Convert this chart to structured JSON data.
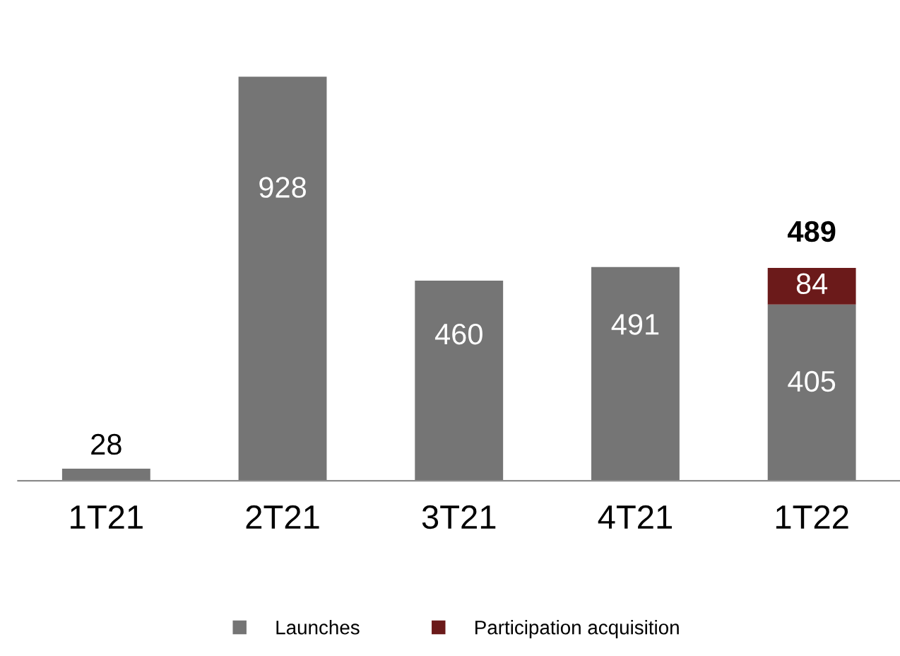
{
  "chart_data": {
    "type": "bar",
    "stacked": true,
    "categories": [
      "1T21",
      "2T21",
      "3T21",
      "4T21",
      "1T22"
    ],
    "series": [
      {
        "name": "Launches",
        "color": "#757575",
        "values": [
          28,
          928,
          460,
          491,
          405
        ]
      },
      {
        "name": "Participation acquisition",
        "color": "#6b1a1a",
        "values": [
          null,
          null,
          null,
          null,
          84
        ]
      }
    ],
    "data_labels": true,
    "totals": [
      null,
      null,
      null,
      null,
      "489"
    ],
    "legend": "bottom",
    "grid": false
  }
}
